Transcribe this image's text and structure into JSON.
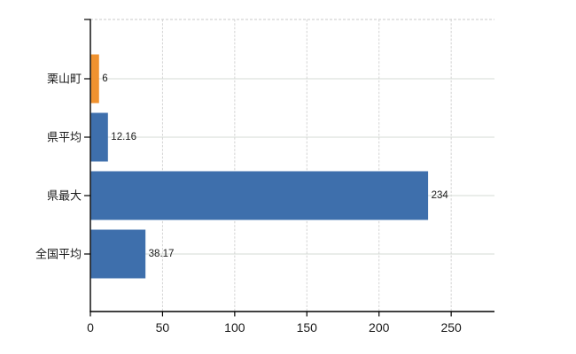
{
  "chart_data": {
    "type": "bar",
    "orientation": "horizontal",
    "title": "",
    "xlabel": "",
    "ylabel": "",
    "categories": [
      "栗山町",
      "県平均",
      "県最大",
      "全国平均"
    ],
    "values": [
      6,
      12.16,
      234,
      38.17
    ],
    "value_labels": [
      "6",
      "12.16",
      "234",
      "38.17"
    ],
    "series_colors": [
      "#F0922F",
      "#3E6FAC",
      "#3E6FAC",
      "#3E6FAC"
    ],
    "x_ticks": [
      0,
      50,
      100,
      150,
      200,
      250
    ],
    "x_tick_labels": [
      "0",
      "50",
      "100",
      "150",
      "200",
      "250"
    ],
    "xlim": [
      0,
      280
    ],
    "grid": true,
    "legend": false
  },
  "colors": {
    "background": "#ffffff",
    "bar_blue": "#3E6FAC",
    "bar_orange": "#F0922F",
    "axis": "#000000",
    "grid_vertical": "#d3d3d3",
    "grid_horizontal": "#d5dbd5",
    "plot_border_top": "#c9c9c9",
    "text": "#1a1a1a"
  }
}
